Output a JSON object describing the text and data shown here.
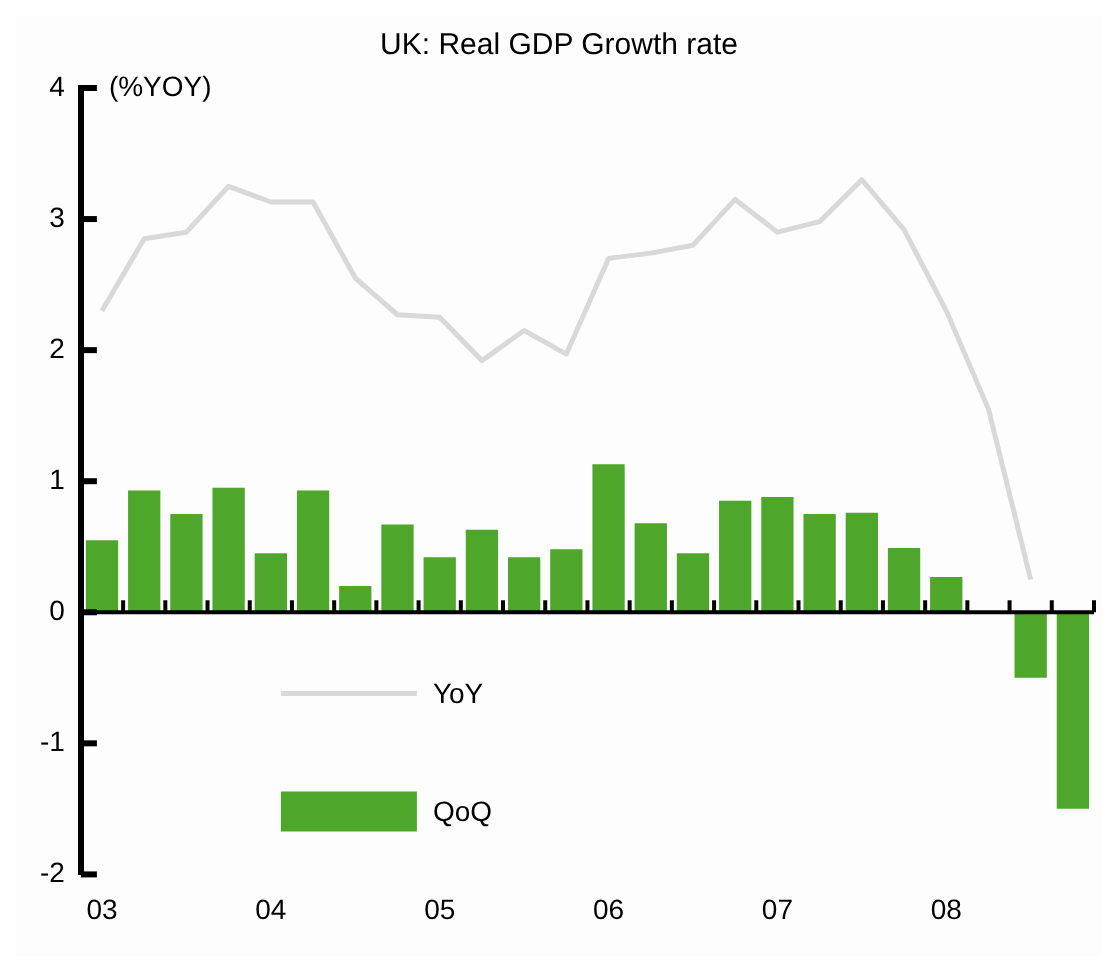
{
  "chart_data": {
    "type": "bar",
    "title": "UK: Real GDP Growth rate",
    "ylabel": "(%YOY)",
    "categories": [
      "03",
      null,
      null,
      null,
      "04",
      null,
      null,
      null,
      "05",
      null,
      null,
      null,
      "06",
      null,
      null,
      null,
      "07",
      null,
      null,
      null,
      "08",
      null,
      null,
      null
    ],
    "series": [
      {
        "name": "YoY",
        "type": "line",
        "color": "#d9d9d9",
        "values": [
          2.3,
          2.85,
          2.9,
          3.25,
          3.13,
          3.13,
          2.55,
          2.27,
          2.25,
          1.92,
          2.15,
          1.97,
          2.7,
          2.74,
          2.8,
          3.15,
          2.9,
          2.98,
          3.3,
          2.92,
          2.3,
          1.55,
          0.25,
          null
        ]
      },
      {
        "name": "QoQ",
        "color": "#4ea72a",
        "values": [
          0.55,
          0.93,
          0.75,
          0.95,
          0.45,
          0.93,
          0.2,
          0.67,
          0.42,
          0.63,
          0.42,
          0.48,
          1.13,
          0.68,
          0.45,
          0.85,
          0.88,
          0.75,
          0.76,
          0.49,
          0.27,
          0,
          -0.5,
          -1.5
        ]
      }
    ],
    "ylim": [
      -2,
      4
    ],
    "yticks": [
      -2,
      -1,
      0,
      1,
      2,
      3,
      4
    ],
    "legend": "bottom left"
  }
}
